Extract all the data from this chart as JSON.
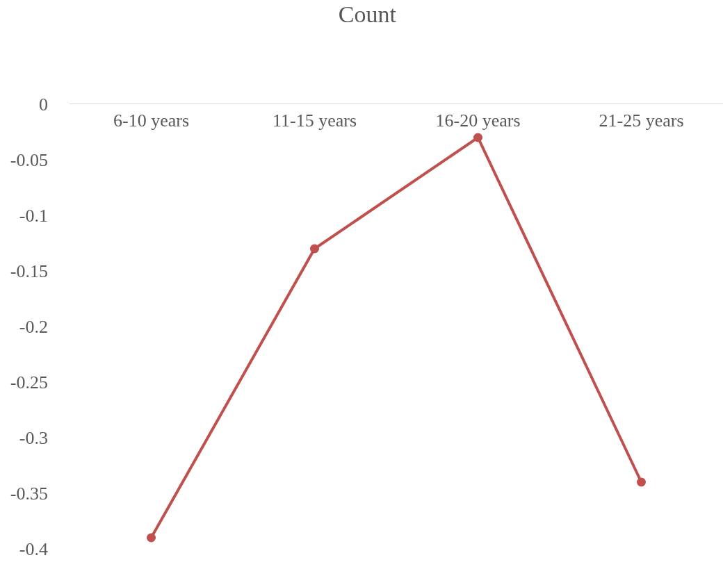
{
  "chart_data": {
    "type": "line",
    "title": "Count",
    "categories": [
      "6-10 years",
      "11-15 years",
      "16-20 years",
      "21-25 years"
    ],
    "series": [
      {
        "color": "#c0504d",
        "values": [
          -0.39,
          -0.13,
          -0.03,
          -0.34
        ]
      }
    ],
    "ylim": [
      -0.4,
      0
    ],
    "yticks": [
      0,
      -0.05,
      -0.1,
      -0.15,
      -0.2,
      -0.25,
      -0.3,
      -0.35,
      -0.4
    ],
    "grid": false,
    "legend": false,
    "marker": "circle",
    "line_style": "solid"
  }
}
